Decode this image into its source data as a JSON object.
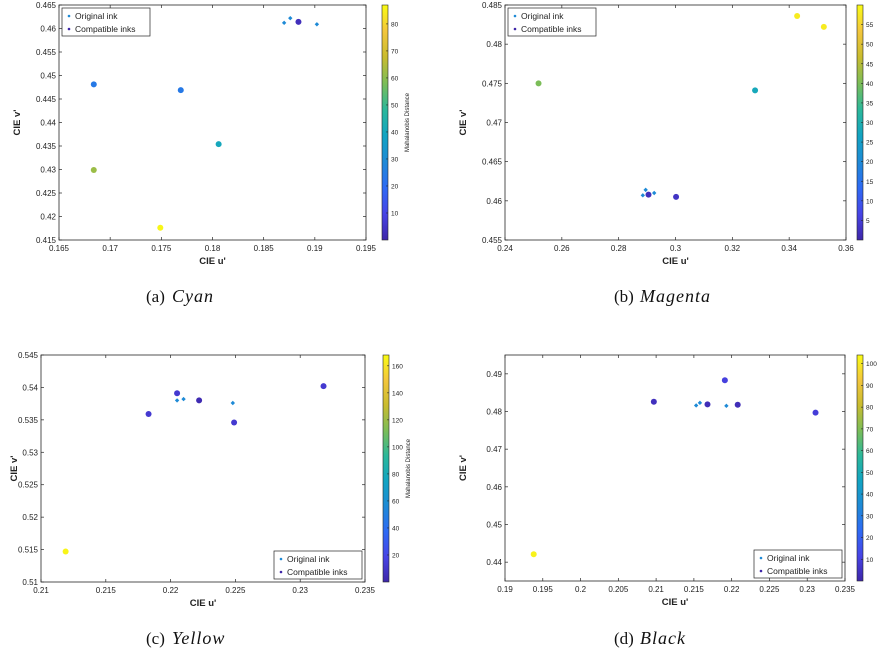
{
  "legend_labels": {
    "original": "Original ink",
    "compatible": "Compatible inks"
  },
  "colorbar_title": "Mahalanobis Distance",
  "colormap": [
    "#3e26a8",
    "#4744e6",
    "#2e6af4",
    "#1e8ad6",
    "#12a4c2",
    "#2cb89a",
    "#7bbd58",
    "#c9bc2f",
    "#f3c63c",
    "#f9fb14"
  ],
  "chart_data": [
    {
      "type": "scatter",
      "caption_letter": "(a)",
      "caption_name": "Cyan",
      "xlabel": "CIE u'",
      "ylabel": "CIE v'",
      "xlim": [
        0.165,
        0.195
      ],
      "ylim": [
        0.415,
        0.465
      ],
      "xticks": [
        "0.165",
        "0.17",
        "0.175",
        "0.18",
        "0.185",
        "0.19",
        "0.195"
      ],
      "yticks": [
        "0.415",
        "0.42",
        "0.425",
        "0.43",
        "0.435",
        "0.44",
        "0.445",
        "0.45",
        "0.455",
        "0.46",
        "0.465"
      ],
      "legend_position": "top-left",
      "colorbar": {
        "range": [
          0,
          87
        ],
        "ticks": [
          "10",
          "20",
          "30",
          "40",
          "50",
          "60",
          "70",
          "80"
        ],
        "title_visible": true
      },
      "original": [
        [
          0.187,
          0.4612
        ],
        [
          0.1876,
          0.4622
        ],
        [
          0.1902,
          0.4609
        ]
      ],
      "compatible": [
        {
          "u": 0.1684,
          "v": 0.4481,
          "d": 24
        },
        {
          "u": 0.1684,
          "v": 0.4299,
          "d": 62
        },
        {
          "u": 0.1769,
          "v": 0.4469,
          "d": 24
        },
        {
          "u": 0.1806,
          "v": 0.4354,
          "d": 40
        },
        {
          "u": 0.1749,
          "v": 0.4176,
          "d": 86
        },
        {
          "u": 0.1884,
          "v": 0.4614,
          "d": 3
        }
      ]
    },
    {
      "type": "scatter",
      "caption_letter": "(b)",
      "caption_name": "Magenta",
      "xlabel": "CIE u'",
      "ylabel": "CIE v'",
      "xlim": [
        0.24,
        0.36
      ],
      "ylim": [
        0.455,
        0.485
      ],
      "xticks": [
        "0.24",
        "0.26",
        "0.28",
        "0.3",
        "0.32",
        "0.34",
        "0.36"
      ],
      "yticks": [
        "0.455",
        "0.46",
        "0.465",
        "0.47",
        "0.475",
        "0.48",
        "0.485"
      ],
      "legend_position": "top-left",
      "colorbar": {
        "range": [
          0,
          60
        ],
        "ticks": [
          "5",
          "10",
          "15",
          "20",
          "25",
          "30",
          "35",
          "40",
          "45",
          "50",
          "55"
        ],
        "title_visible": false
      },
      "original": [
        [
          0.2885,
          0.4607
        ],
        [
          0.2895,
          0.4614
        ],
        [
          0.2925,
          0.461
        ]
      ],
      "compatible": [
        {
          "u": 0.2518,
          "v": 0.475,
          "d": 40
        },
        {
          "u": 0.328,
          "v": 0.4741,
          "d": 28
        },
        {
          "u": 0.3428,
          "v": 0.4836,
          "d": 58
        },
        {
          "u": 0.3522,
          "v": 0.4822,
          "d": 58
        },
        {
          "u": 0.2905,
          "v": 0.4608,
          "d": 2
        },
        {
          "u": 0.3002,
          "v": 0.4605,
          "d": 3
        }
      ]
    },
    {
      "type": "scatter",
      "caption_letter": "(c)",
      "caption_name": "Yellow",
      "xlabel": "CIE u'",
      "ylabel": "CIE v'",
      "xlim": [
        0.21,
        0.235
      ],
      "ylim": [
        0.51,
        0.545
      ],
      "xticks": [
        "0.21",
        "0.215",
        "0.22",
        "0.225",
        "0.23",
        "0.235"
      ],
      "yticks": [
        "0.51",
        "0.515",
        "0.52",
        "0.525",
        "0.53",
        "0.535",
        "0.54",
        "0.545"
      ],
      "legend_position": "bottom-right",
      "colorbar": {
        "range": [
          0,
          168
        ],
        "ticks": [
          "20",
          "40",
          "60",
          "80",
          "100",
          "120",
          "140",
          "160"
        ],
        "title_visible": true
      },
      "original": [
        [
          0.2205,
          0.538
        ],
        [
          0.221,
          0.5382
        ],
        [
          0.2248,
          0.5376
        ]
      ],
      "compatible": [
        {
          "u": 0.2183,
          "v": 0.5359,
          "d": 12
        },
        {
          "u": 0.2205,
          "v": 0.5391,
          "d": 12
        },
        {
          "u": 0.2222,
          "v": 0.538,
          "d": 3
        },
        {
          "u": 0.2249,
          "v": 0.5346,
          "d": 12
        },
        {
          "u": 0.2318,
          "v": 0.5402,
          "d": 12
        },
        {
          "u": 0.2119,
          "v": 0.5147,
          "d": 166
        }
      ]
    },
    {
      "type": "scatter",
      "caption_letter": "(d)",
      "caption_name": "Black",
      "xlabel": "CIE u'",
      "ylabel": "CIE v'",
      "xlim": [
        0.19,
        0.235
      ],
      "ylim": [
        0.435,
        0.495
      ],
      "xticks": [
        "0.19",
        "0.195",
        "0.2",
        "0.205",
        "0.21",
        "0.215",
        "0.22",
        "0.225",
        "0.23",
        "0.235"
      ],
      "yticks": [
        "0.44",
        "0.45",
        "0.46",
        "0.47",
        "0.48",
        "0.49"
      ],
      "legend_position": "bottom-right",
      "colorbar": {
        "range": [
          0,
          104
        ],
        "ticks": [
          "10",
          "20",
          "30",
          "40",
          "50",
          "60",
          "70",
          "80",
          "90",
          "100"
        ],
        "title_visible": false
      },
      "original": [
        [
          0.2153,
          0.4816
        ],
        [
          0.2158,
          0.4823
        ],
        [
          0.2193,
          0.4815
        ]
      ],
      "compatible": [
        {
          "u": 0.2097,
          "v": 0.4826,
          "d": 4
        },
        {
          "u": 0.2168,
          "v": 0.4819,
          "d": 3
        },
        {
          "u": 0.2191,
          "v": 0.4883,
          "d": 10
        },
        {
          "u": 0.2208,
          "v": 0.4818,
          "d": 3
        },
        {
          "u": 0.2311,
          "v": 0.4797,
          "d": 9
        },
        {
          "u": 0.1938,
          "v": 0.4421,
          "d": 102
        }
      ]
    }
  ]
}
